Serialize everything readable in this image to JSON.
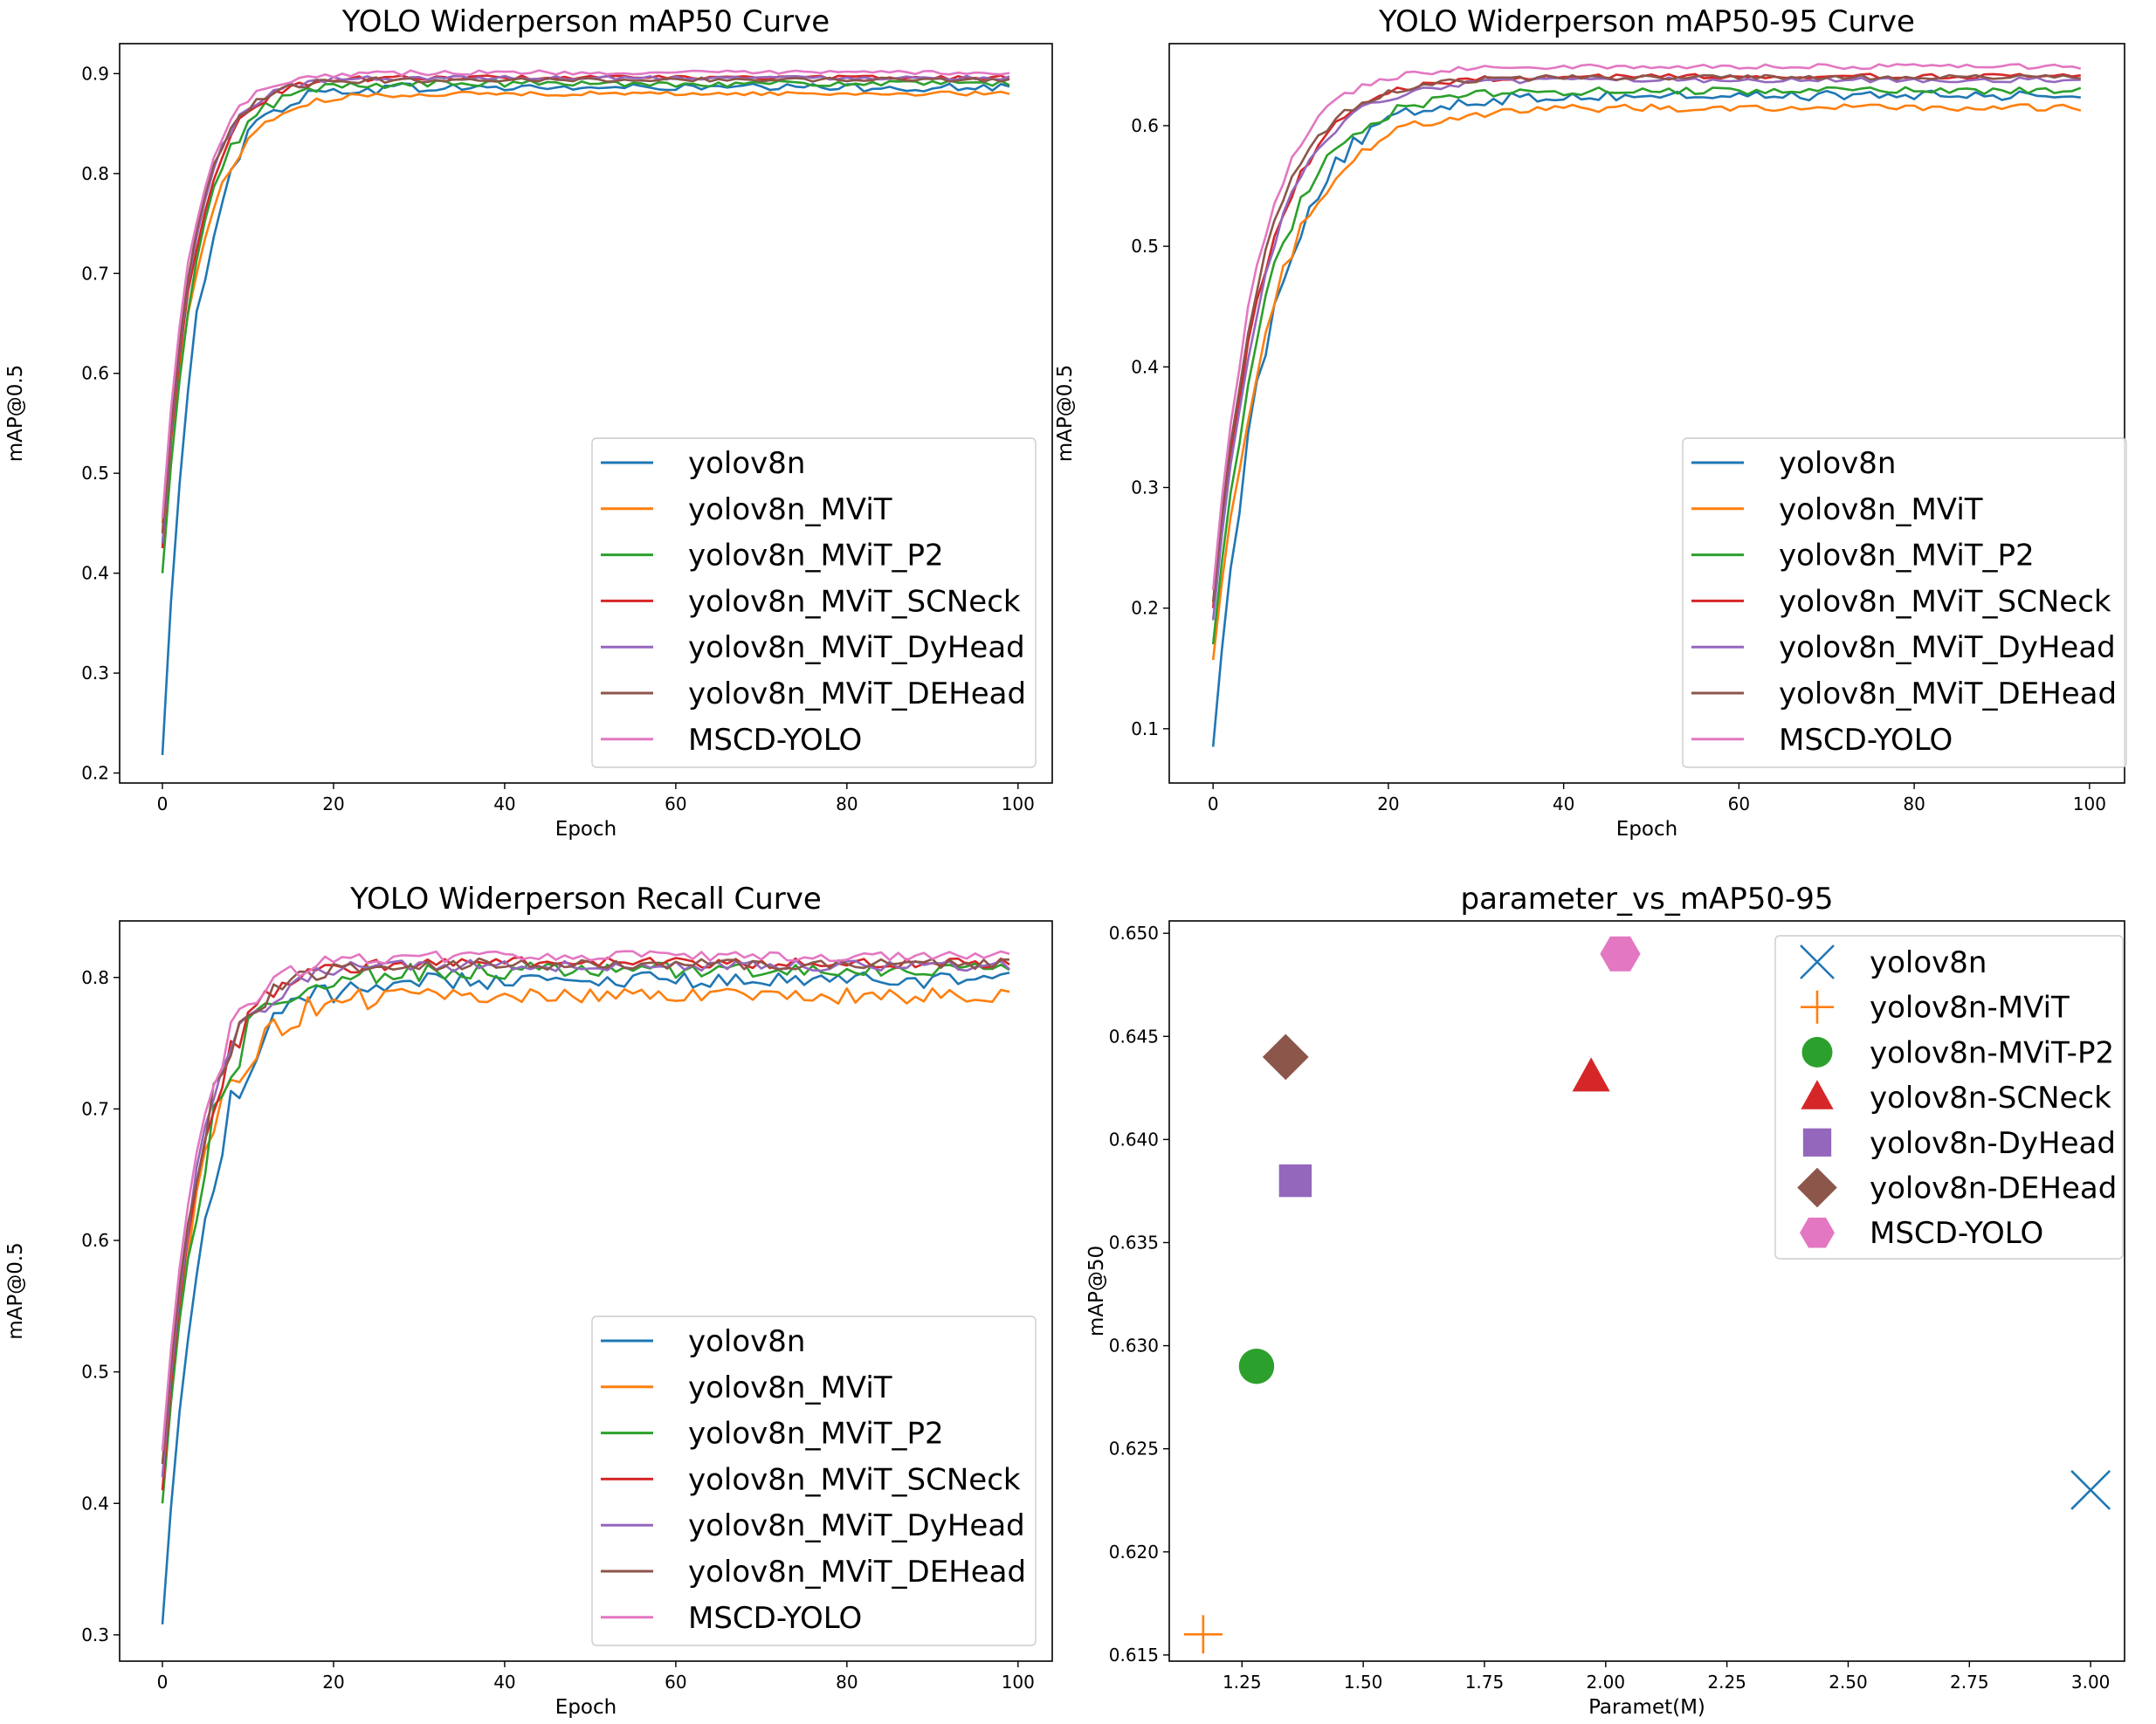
{
  "colors": {
    "yolov8n": "#1f77b4",
    "mvit": "#ff7f0e",
    "p2": "#2ca02c",
    "scneck": "#d62728",
    "dyhead": "#9467bd",
    "dehead": "#8c564b",
    "mscd": "#e377c2"
  },
  "chart_data": [
    {
      "type": "line",
      "title": "YOLO Widerperson mAP50 Curve",
      "xlabel": "Epoch",
      "ylabel": "mAP@0.5",
      "xlim": [
        -5,
        104
      ],
      "ylim": [
        0.19,
        0.93
      ],
      "xticks": [
        0,
        20,
        40,
        60,
        80,
        100
      ],
      "yticks": [
        0.2,
        0.3,
        0.4,
        0.5,
        0.6,
        0.7,
        0.8,
        0.9
      ],
      "legend_position": "lower-right",
      "series": [
        {
          "name": "yolov8n",
          "color_key": "yolov8n",
          "start": 0.218,
          "end": 0.886,
          "k": 0.26,
          "noise": 0.004
        },
        {
          "name": "yolov8n_MViT",
          "color_key": "mvit",
          "start": 0.45,
          "end": 0.88,
          "k": 0.22,
          "noise": 0.002
        },
        {
          "name": "yolov8n_MViT_P2",
          "color_key": "p2",
          "start": 0.4,
          "end": 0.89,
          "k": 0.25,
          "noise": 0.003
        },
        {
          "name": "yolov8n_MViT_SCNeck",
          "color_key": "scneck",
          "start": 0.425,
          "end": 0.896,
          "k": 0.26,
          "noise": 0.002
        },
        {
          "name": "yolov8n_MViT_DyHead",
          "color_key": "dyhead",
          "start": 0.43,
          "end": 0.896,
          "k": 0.27,
          "noise": 0.002
        },
        {
          "name": "yolov8n_MViT_DEHead",
          "color_key": "dehead",
          "start": 0.44,
          "end": 0.894,
          "k": 0.27,
          "noise": 0.002
        },
        {
          "name": "MSCD-YOLO",
          "color_key": "mscd",
          "start": 0.455,
          "end": 0.901,
          "k": 0.28,
          "noise": 0.002
        }
      ]
    },
    {
      "type": "line",
      "title": "YOLO Widerperson mAP50-95 Curve",
      "xlabel": "Epoch",
      "ylabel": "mAP@0.5",
      "xlim": [
        -5,
        104
      ],
      "ylim": [
        0.055,
        0.668
      ],
      "xticks": [
        0,
        20,
        40,
        60,
        80,
        100
      ],
      "yticks": [
        0.1,
        0.2,
        0.3,
        0.4,
        0.5,
        0.6
      ],
      "legend_position": "lower-right",
      "series": [
        {
          "name": "yolov8n",
          "color_key": "yolov8n",
          "start": 0.085,
          "end": 0.625,
          "k": 0.16,
          "noise": 0.004
        },
        {
          "name": "yolov8n_MViT",
          "color_key": "mvit",
          "start": 0.157,
          "end": 0.615,
          "k": 0.15,
          "noise": 0.003
        },
        {
          "name": "yolov8n_MViT_P2",
          "color_key": "p2",
          "start": 0.17,
          "end": 0.629,
          "k": 0.16,
          "noise": 0.003
        },
        {
          "name": "yolov8n_MViT_SCNeck",
          "color_key": "scneck",
          "start": 0.2,
          "end": 0.641,
          "k": 0.17,
          "noise": 0.002
        },
        {
          "name": "yolov8n_MViT_DyHead",
          "color_key": "dyhead",
          "start": 0.19,
          "end": 0.638,
          "k": 0.17,
          "noise": 0.002
        },
        {
          "name": "yolov8n_MViT_DEHead",
          "color_key": "dehead",
          "start": 0.205,
          "end": 0.64,
          "k": 0.18,
          "noise": 0.002
        },
        {
          "name": "MSCD-YOLO",
          "color_key": "mscd",
          "start": 0.215,
          "end": 0.649,
          "k": 0.19,
          "noise": 0.002
        }
      ]
    },
    {
      "type": "line",
      "title": "YOLO Widerperson Recall Curve",
      "xlabel": "Epoch",
      "ylabel": "mAP@0.5",
      "xlim": [
        -5,
        104
      ],
      "ylim": [
        0.28,
        0.843
      ],
      "xticks": [
        0,
        20,
        40,
        60,
        80,
        100
      ],
      "yticks": [
        0.3,
        0.4,
        0.5,
        0.6,
        0.7,
        0.8
      ],
      "legend_position": "lower-right",
      "series": [
        {
          "name": "yolov8n",
          "color_key": "yolov8n",
          "start": 0.308,
          "end": 0.798,
          "k": 0.2,
          "noise": 0.006
        },
        {
          "name": "yolov8n_MViT",
          "color_key": "mvit",
          "start": 0.42,
          "end": 0.786,
          "k": 0.21,
          "noise": 0.006
        },
        {
          "name": "yolov8n_MViT_P2",
          "color_key": "p2",
          "start": 0.4,
          "end": 0.805,
          "k": 0.21,
          "noise": 0.006
        },
        {
          "name": "yolov8n_MViT_SCNeck",
          "color_key": "scneck",
          "start": 0.41,
          "end": 0.811,
          "k": 0.22,
          "noise": 0.004
        },
        {
          "name": "yolov8n_MViT_DyHead",
          "color_key": "dyhead",
          "start": 0.42,
          "end": 0.809,
          "k": 0.22,
          "noise": 0.004
        },
        {
          "name": "yolov8n_MViT_DEHead",
          "color_key": "dehead",
          "start": 0.43,
          "end": 0.81,
          "k": 0.22,
          "noise": 0.004
        },
        {
          "name": "MSCD-YOLO",
          "color_key": "mscd",
          "start": 0.44,
          "end": 0.816,
          "k": 0.23,
          "noise": 0.004
        }
      ]
    },
    {
      "type": "scatter",
      "title": "parameter_vs_mAP50-95",
      "xlabel": "Paramet(M)",
      "ylabel": "mAP@50",
      "xlim": [
        1.1,
        3.07
      ],
      "ylim": [
        0.6147,
        0.6506
      ],
      "xticks": [
        "1.25",
        "1.50",
        "1.75",
        "2.00",
        "2.25",
        "2.50",
        "2.75",
        "3.00"
      ],
      "yticks": [
        "0.615",
        "0.620",
        "0.625",
        "0.630",
        "0.635",
        "0.640",
        "0.645",
        "0.650"
      ],
      "legend_position": "upper-right",
      "points": [
        {
          "name": "yolov8n",
          "color_key": "yolov8n",
          "marker": "x",
          "x": 3.0,
          "y": 0.623
        },
        {
          "name": "yolov8n-MViT",
          "color_key": "mvit",
          "marker": "plus",
          "x": 1.17,
          "y": 0.616
        },
        {
          "name": "yolov8n-MViT-P2",
          "color_key": "p2",
          "marker": "circle",
          "x": 1.28,
          "y": 0.629
        },
        {
          "name": "yolov8n-SCNeck",
          "color_key": "scneck",
          "marker": "triangle",
          "x": 1.97,
          "y": 0.643
        },
        {
          "name": "yolov8n-DyHead",
          "color_key": "dyhead",
          "marker": "square",
          "x": 1.36,
          "y": 0.638
        },
        {
          "name": "yolov8n-DEHead",
          "color_key": "dehead",
          "marker": "diamond",
          "x": 1.34,
          "y": 0.644
        },
        {
          "name": "MSCD-YOLO",
          "color_key": "mscd",
          "marker": "hexagon",
          "x": 2.03,
          "y": 0.649
        }
      ]
    }
  ]
}
